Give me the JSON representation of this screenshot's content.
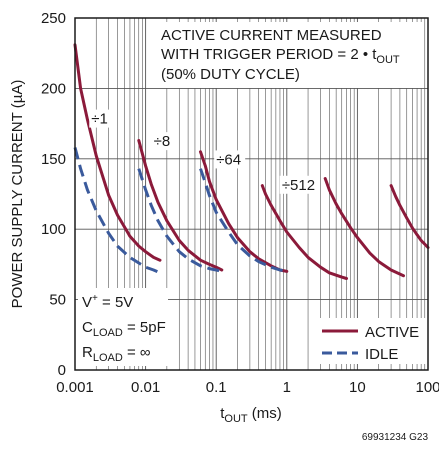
{
  "chart_data": {
    "type": "line",
    "x_scale": "log",
    "xlim": [
      0.001,
      100
    ],
    "ylim": [
      0,
      250
    ],
    "grid": true,
    "x_ticks": [
      "0.001",
      "0.01",
      "0.1",
      "1",
      "10",
      "100"
    ],
    "y_ticks": [
      "0",
      "50",
      "100",
      "150",
      "200",
      "250"
    ],
    "xlabel": {
      "main": "t",
      "sub": "OUT",
      "rest": " (ms)"
    },
    "ylabel": "POWER SUPPLY CURRENT (µA)",
    "annotation": {
      "line1": "ACTIVE CURRENT MEASURED",
      "line2_main": "WITH TRIGGER PERIOD = 2 • t",
      "line2_sub": "OUT",
      "line3": "(50% DUTY CYCLE)"
    },
    "conditions": [
      {
        "main": "V",
        "sup": "+",
        "rest": " = 5V"
      },
      {
        "main": "C",
        "sub": "LOAD",
        "rest": " = 5pF"
      },
      {
        "main": "R",
        "sub": "LOAD",
        "rest": " = ∞"
      }
    ],
    "legend": {
      "position": "bottom-right",
      "items": [
        {
          "name": "ACTIVE",
          "color": "#8b1a3a",
          "dash": false
        },
        {
          "name": "IDLE",
          "color": "#3a5a9c",
          "dash": true
        }
      ]
    },
    "divider_labels": [
      {
        "text": "÷1",
        "x": 0.0017,
        "y": 175
      },
      {
        "text": "÷8",
        "x": 0.013,
        "y": 159
      },
      {
        "text": "÷64",
        "x": 0.1,
        "y": 146
      },
      {
        "text": "÷512",
        "x": 0.85,
        "y": 128
      }
    ],
    "series": [
      {
        "name": "ACTIVE",
        "color": "#8b1a3a",
        "dash": false,
        "segments": [
          {
            "x": [
              0.001,
              0.0012,
              0.0015,
              0.002,
              0.003,
              0.004,
              0.006,
              0.008,
              0.01,
              0.013,
              0.016
            ],
            "y": [
              231,
              200,
              178,
              152,
              124,
              110,
              95,
              88,
              84,
              80,
              78
            ]
          },
          {
            "x": [
              0.008,
              0.01,
              0.012,
              0.015,
              0.02,
              0.03,
              0.04,
              0.06,
              0.08,
              0.1,
              0.12
            ],
            "y": [
              163,
              145,
              132,
              119,
              106,
              92,
              85,
              78,
              75,
              73,
              71
            ]
          },
          {
            "x": [
              0.06,
              0.07,
              0.08,
              0.1,
              0.15,
              0.2,
              0.3,
              0.4,
              0.6,
              0.8,
              1.0
            ],
            "y": [
              155,
              145,
              134,
              121,
              104,
              94,
              84,
              79,
              74,
              71,
              70
            ]
          },
          {
            "x": [
              0.45,
              0.5,
              0.6,
              0.8,
              1.0,
              1.5,
              2.0,
              3.0,
              4.0,
              6.0,
              7.0
            ],
            "y": [
              131,
              125,
              117,
              106,
              98,
              87,
              80,
              73,
              69,
              66,
              65
            ]
          },
          {
            "x": [
              3.5,
              4.0,
              5.0,
              6.0,
              8.0,
              10,
              15,
              20,
              30,
              45
            ],
            "y": [
              136,
              128,
              118,
              111,
              101,
              94,
              83,
              77,
              71,
              67
            ]
          },
          {
            "x": [
              30,
              35,
              40,
              50,
              60,
              70,
              80,
              100
            ],
            "y": [
              131,
              123,
              117,
              108,
              101,
              96,
              92,
              87
            ]
          }
        ]
      },
      {
        "name": "IDLE",
        "color": "#3a5a9c",
        "dash": true,
        "segments": [
          {
            "x": [
              0.001,
              0.0012,
              0.0015,
              0.002,
              0.003,
              0.004,
              0.006,
              0.008,
              0.01,
              0.013,
              0.016
            ],
            "y": [
              158,
              143,
              128,
              113,
              97,
              88,
              80,
              76,
              73,
              71,
              69
            ]
          },
          {
            "x": [
              0.008,
              0.01,
              0.012,
              0.015,
              0.02,
              0.03,
              0.04,
              0.06,
              0.08,
              0.1,
              0.12
            ],
            "y": [
              143,
              128,
              117,
              106,
              95,
              84,
              79,
              74,
              72,
              71,
              70
            ]
          },
          {
            "x": [
              0.06,
              0.07,
              0.08,
              0.1,
              0.15,
              0.2,
              0.3,
              0.4,
              0.6,
              0.8,
              1.0
            ],
            "y": [
              143,
              133,
              124,
              112,
              98,
              89,
              81,
              77,
              73,
              71,
              70
            ]
          }
        ]
      }
    ]
  },
  "figure_id": "69931234 G23"
}
